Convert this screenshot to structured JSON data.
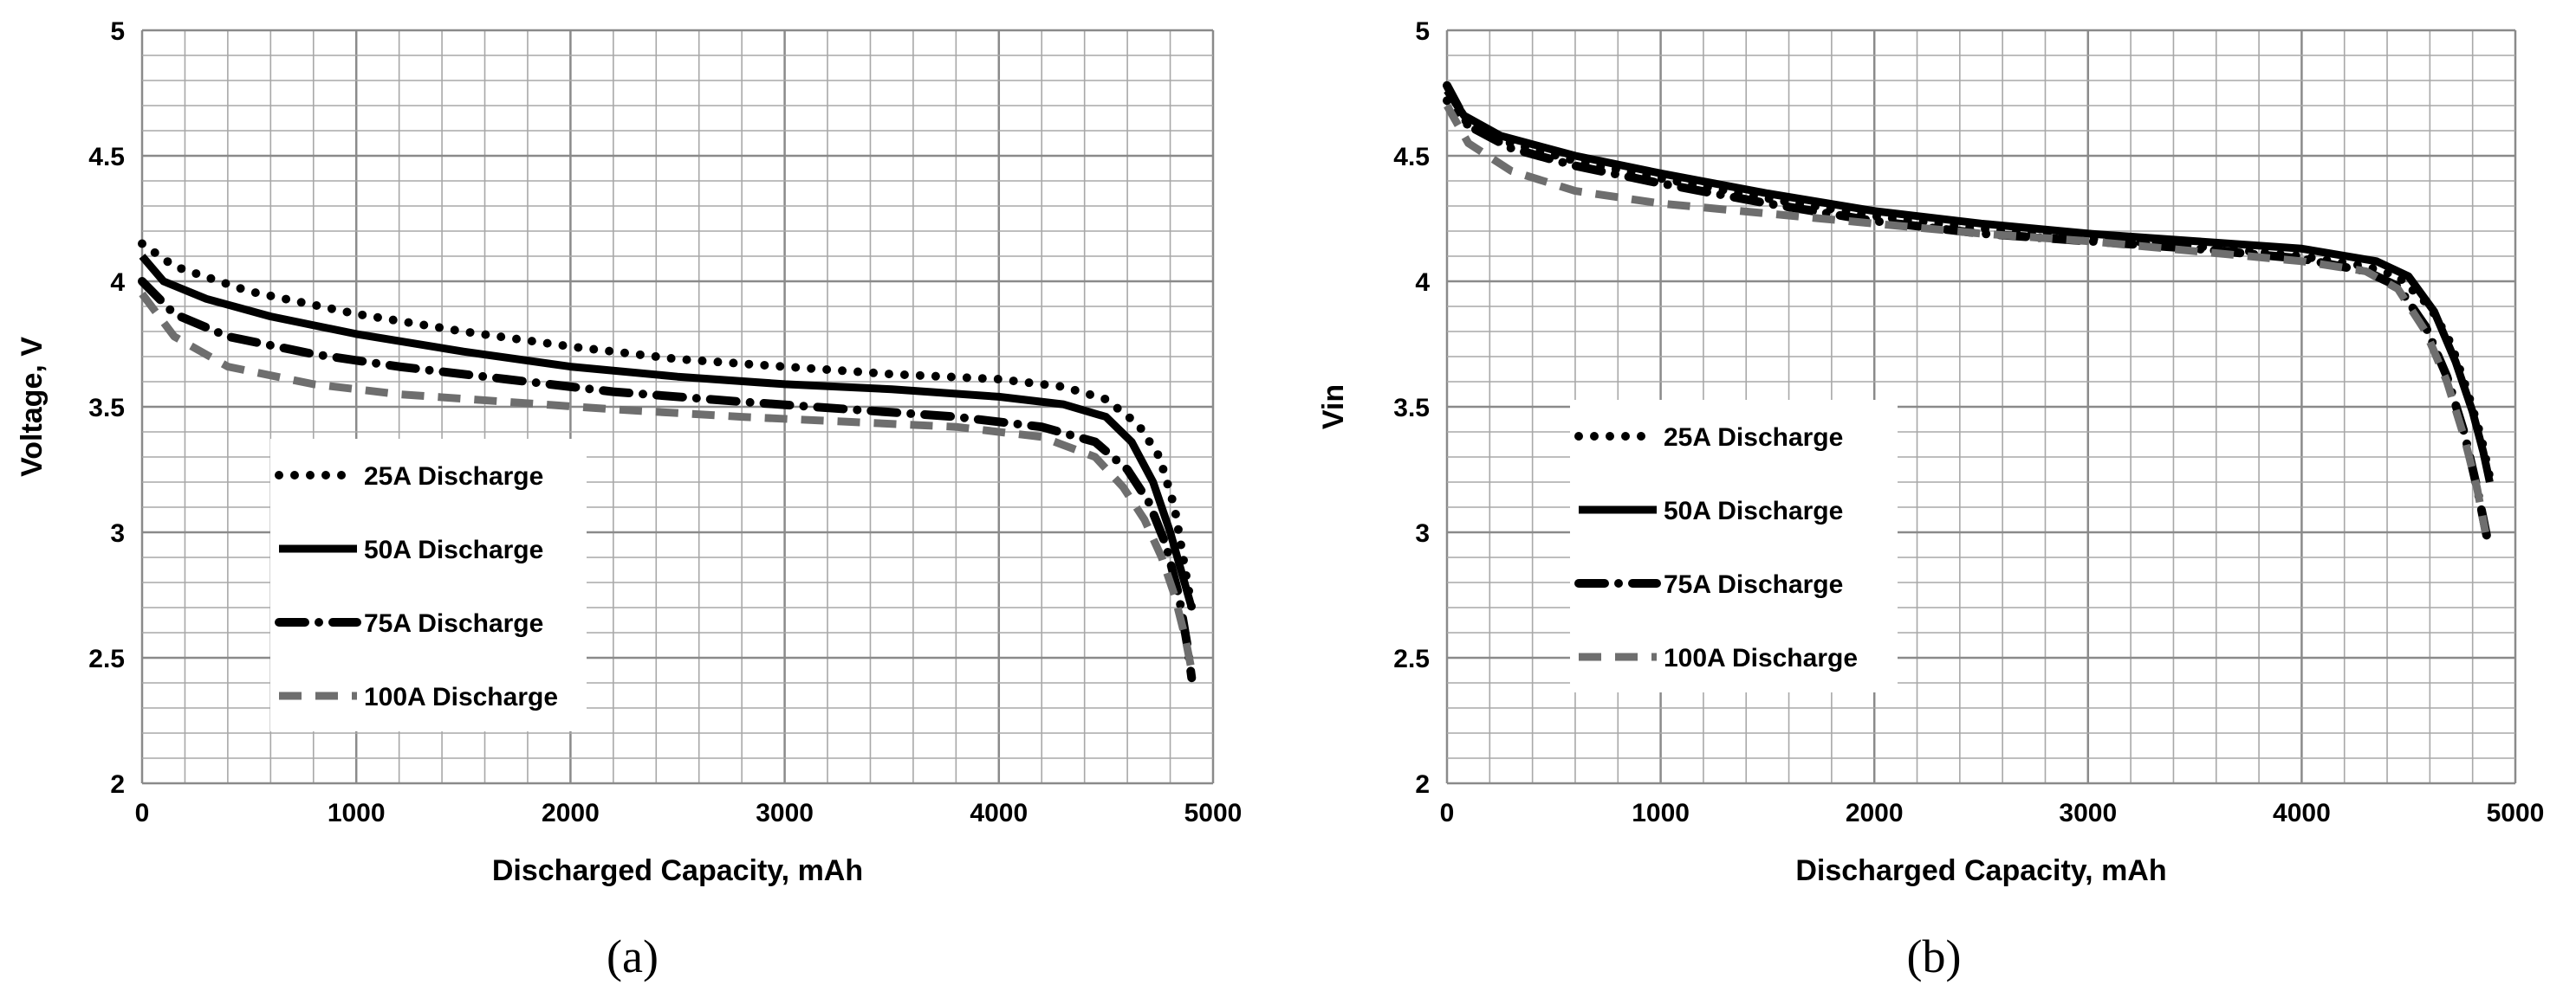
{
  "chart_data": [
    {
      "type": "line",
      "panel_label": "(a)",
      "xlabel": "Discharged Capacity, mAh",
      "ylabel": "Voltage, V",
      "xlim": [
        0,
        5000
      ],
      "ylim": [
        2,
        5
      ],
      "xticks": [
        "0",
        "1000",
        "2000",
        "3000",
        "4000",
        "5000"
      ],
      "yticks": [
        "2",
        "2.5",
        "3",
        "3.5",
        "4",
        "4.5",
        "5"
      ],
      "grid": true,
      "legend_position": "center-left",
      "series": [
        {
          "name": "25A Discharge",
          "style": "dotted",
          "color": "#000000",
          "x": [
            0,
            150,
            500,
            1000,
            1500,
            2000,
            2500,
            3000,
            3500,
            4000,
            4300,
            4500,
            4650,
            4750,
            4820,
            4870,
            4900
          ],
          "y": [
            4.15,
            4.06,
            3.96,
            3.87,
            3.8,
            3.74,
            3.69,
            3.66,
            3.63,
            3.61,
            3.58,
            3.53,
            3.43,
            3.3,
            3.1,
            2.85,
            2.7
          ]
        },
        {
          "name": "50A Discharge",
          "style": "solid",
          "color": "#000000",
          "x": [
            0,
            100,
            300,
            600,
            1000,
            1500,
            2000,
            2500,
            3000,
            3500,
            4000,
            4300,
            4500,
            4620,
            4720,
            4800,
            4860,
            4900
          ],
          "y": [
            4.1,
            4.0,
            3.93,
            3.86,
            3.79,
            3.72,
            3.66,
            3.62,
            3.59,
            3.57,
            3.54,
            3.51,
            3.46,
            3.36,
            3.2,
            3.0,
            2.82,
            2.7
          ]
        },
        {
          "name": "75A Discharge",
          "style": "dash-dot",
          "color": "#000000",
          "x": [
            0,
            150,
            400,
            800,
            1200,
            1700,
            2200,
            2800,
            3300,
            3800,
            4200,
            4450,
            4600,
            4700,
            4780,
            4840,
            4880,
            4900
          ],
          "y": [
            4.0,
            3.87,
            3.78,
            3.71,
            3.66,
            3.61,
            3.56,
            3.52,
            3.49,
            3.46,
            3.42,
            3.36,
            3.25,
            3.12,
            2.95,
            2.75,
            2.55,
            2.42
          ]
        },
        {
          "name": "100A Discharge",
          "style": "dashed",
          "color": "#6e6e6e",
          "x": [
            0,
            150,
            400,
            800,
            1200,
            1700,
            2200,
            2800,
            3300,
            3800,
            4200,
            4450,
            4580,
            4680,
            4760,
            4820,
            4870,
            4900
          ],
          "y": [
            3.95,
            3.78,
            3.66,
            3.59,
            3.55,
            3.52,
            3.49,
            3.46,
            3.44,
            3.42,
            3.38,
            3.3,
            3.18,
            3.05,
            2.9,
            2.75,
            2.58,
            2.45
          ]
        }
      ]
    },
    {
      "type": "line",
      "panel_label": "(b)",
      "xlabel": "Discharged Capacity, mAh",
      "ylabel": "Vin",
      "xlim": [
        0,
        5000
      ],
      "ylim": [
        2,
        5
      ],
      "xticks": [
        "0",
        "1000",
        "2000",
        "3000",
        "4000",
        "5000"
      ],
      "yticks": [
        "2",
        "2.5",
        "3",
        "3.5",
        "4",
        "4.5",
        "5"
      ],
      "grid": true,
      "legend_position": "center-left",
      "series": [
        {
          "name": "25A Discharge",
          "style": "dotted",
          "color": "#000000",
          "x": [
            0,
            100,
            300,
            600,
            1000,
            1500,
            2000,
            2500,
            3000,
            3500,
            4000,
            4300,
            4450,
            4600,
            4700,
            4780,
            4840,
            4880
          ],
          "y": [
            4.72,
            4.62,
            4.55,
            4.48,
            4.41,
            4.33,
            4.26,
            4.21,
            4.17,
            4.14,
            4.1,
            4.06,
            4.02,
            3.9,
            3.75,
            3.55,
            3.38,
            3.22
          ]
        },
        {
          "name": "50A Discharge",
          "style": "solid",
          "color": "#000000",
          "x": [
            0,
            80,
            250,
            600,
            1000,
            1500,
            2000,
            2500,
            3000,
            3500,
            4000,
            4350,
            4500,
            4620,
            4720,
            4800,
            4850,
            4880
          ],
          "y": [
            4.76,
            4.66,
            4.58,
            4.5,
            4.43,
            4.35,
            4.28,
            4.23,
            4.19,
            4.16,
            4.13,
            4.08,
            4.02,
            3.88,
            3.68,
            3.48,
            3.32,
            3.2
          ]
        },
        {
          "name": "75A Discharge",
          "style": "dash-dot",
          "color": "#000000",
          "x": [
            0,
            100,
            300,
            600,
            1000,
            1500,
            2000,
            2500,
            3000,
            3500,
            4000,
            4300,
            4450,
            4580,
            4680,
            4760,
            4820,
            4870
          ],
          "y": [
            4.78,
            4.62,
            4.53,
            4.46,
            4.39,
            4.31,
            4.24,
            4.19,
            4.16,
            4.13,
            4.09,
            4.04,
            3.98,
            3.82,
            3.62,
            3.4,
            3.18,
            2.97
          ]
        },
        {
          "name": "100A Discharge",
          "style": "dashed",
          "color": "#6e6e6e",
          "x": [
            0,
            100,
            300,
            600,
            1000,
            1500,
            2000,
            2500,
            3000,
            3500,
            4000,
            4300,
            4450,
            4580,
            4680,
            4760,
            4820,
            4860
          ],
          "y": [
            4.7,
            4.55,
            4.44,
            4.36,
            4.31,
            4.27,
            4.23,
            4.19,
            4.16,
            4.12,
            4.08,
            4.04,
            3.97,
            3.8,
            3.6,
            3.38,
            3.18,
            3.0
          ]
        }
      ]
    }
  ]
}
